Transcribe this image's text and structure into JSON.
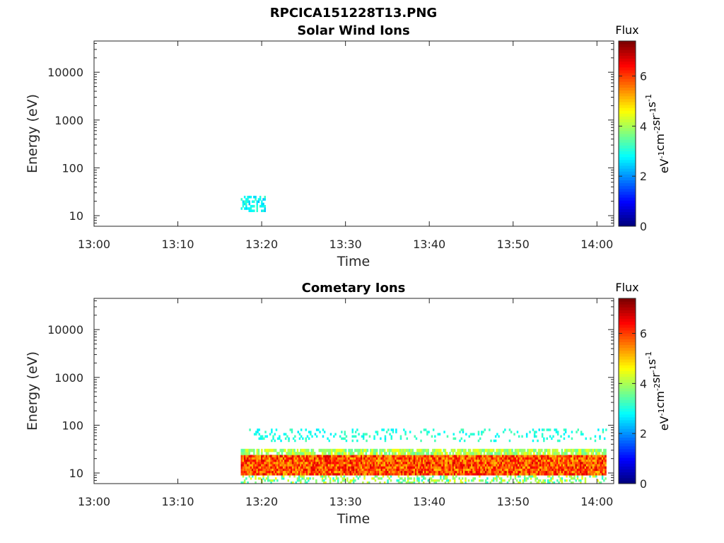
{
  "figure_title": "RPCICA151228T13.PNG",
  "colorbar": {
    "title": "Flux",
    "label_parts": [
      "eV",
      "-1",
      "cm",
      "-2",
      "sr",
      "-1",
      "s",
      "-1"
    ],
    "ticks": [
      "0",
      "2",
      "4",
      "6"
    ],
    "range": [
      0,
      7.4
    ],
    "colormap": "jet"
  },
  "chart_data": [
    {
      "type": "heatmap",
      "title": "Solar Wind Ions",
      "xlabel": "Time",
      "ylabel": "Energy (eV)",
      "xticks": [
        "13:00",
        "13:10",
        "13:20",
        "13:30",
        "13:40",
        "13:50",
        "14:00"
      ],
      "xlim": [
        "13:00",
        "14:02"
      ],
      "yticks": [
        "10",
        "100",
        "1000",
        "10000"
      ],
      "ylim": [
        6,
        45000
      ],
      "yscale": "log",
      "bands": [
        {
          "t_start": "13:17:30",
          "t_end": "13:20:20",
          "e_low": 12,
          "e_high": 26,
          "flux": 2.8,
          "variability": 0.5,
          "density": 0.55
        }
      ]
    },
    {
      "type": "heatmap",
      "title": "Cometary Ions",
      "xlabel": "Time",
      "ylabel": "Energy (eV)",
      "xticks": [
        "13:00",
        "13:10",
        "13:20",
        "13:30",
        "13:40",
        "13:50",
        "14:00"
      ],
      "xlim": [
        "13:00",
        "14:02"
      ],
      "yticks": [
        "10",
        "100",
        "1000",
        "10000"
      ],
      "ylim": [
        6,
        45000
      ],
      "yscale": "log",
      "bands": [
        {
          "t_start": "13:17:30",
          "t_end": "14:01:00",
          "e_low": 6,
          "e_high": 9,
          "flux": 3.8,
          "variability": 0.8,
          "density": 0.35
        },
        {
          "t_start": "13:17:30",
          "t_end": "14:01:00",
          "e_low": 9,
          "e_high": 24,
          "flux": 5.9,
          "variability": 0.9,
          "density": 1.0
        },
        {
          "t_start": "13:17:30",
          "t_end": "14:01:00",
          "e_low": 24,
          "e_high": 32,
          "flux": 4.0,
          "variability": 0.6,
          "density": 0.8
        },
        {
          "t_start": "13:18:30",
          "t_end": "14:01:00",
          "e_low": 45,
          "e_high": 85,
          "flux": 3.0,
          "variability": 0.4,
          "density": 0.18
        }
      ]
    }
  ]
}
